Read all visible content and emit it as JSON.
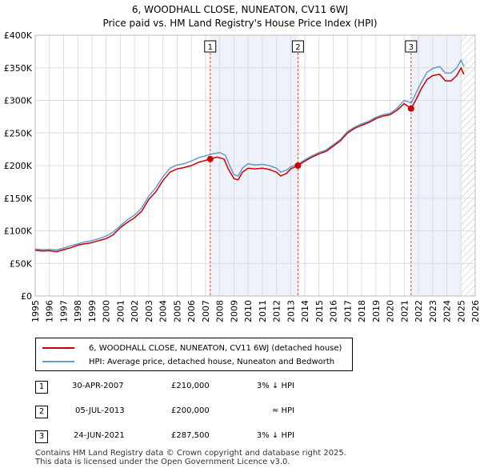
{
  "title_line1": "6, WOODHALL CLOSE, NUNEATON, CV11 6WJ",
  "title_line2": "Price paid vs. HM Land Registry's House Price Index (HPI)",
  "chart_data": {
    "type": "line",
    "title": "6, WOODHALL CLOSE, NUNEATON, CV11 6WJ",
    "subtitle": "Price paid vs. HM Land Registry's House Price Index (HPI)",
    "xlabel": "",
    "ylabel": "",
    "xlim": [
      1995,
      2026
    ],
    "ylim": [
      0,
      400000
    ],
    "x_ticks": [
      "1995",
      "1996",
      "1997",
      "1998",
      "1999",
      "2000",
      "2001",
      "2002",
      "2003",
      "2004",
      "2005",
      "2006",
      "2007",
      "2008",
      "2009",
      "2010",
      "2011",
      "2012",
      "2013",
      "2014",
      "2015",
      "2016",
      "2017",
      "2018",
      "2019",
      "2020",
      "2021",
      "2022",
      "2023",
      "2024",
      "2025",
      "2026"
    ],
    "y_ticks": [
      {
        "value": 0,
        "label": "£0"
      },
      {
        "value": 50000,
        "label": "£50K"
      },
      {
        "value": 100000,
        "label": "£100K"
      },
      {
        "value": 150000,
        "label": "£150K"
      },
      {
        "value": 200000,
        "label": "£200K"
      },
      {
        "value": 250000,
        "label": "£250K"
      },
      {
        "value": 300000,
        "label": "£300K"
      },
      {
        "value": 350000,
        "label": "£350K"
      },
      {
        "value": 400000,
        "label": "£400K"
      }
    ],
    "grid": true,
    "shaded_periods": [
      [
        2007.33,
        2013.51
      ],
      [
        2021.48,
        2025.0
      ]
    ],
    "hatched_future_from": 2025.0,
    "series": [
      {
        "name": "6, WOODHALL CLOSE, NUNEATON, CV11 6WJ (detached house)",
        "color": "#cc0000",
        "points": [
          [
            1995.0,
            70000
          ],
          [
            1995.5,
            69000
          ],
          [
            1996.0,
            69500
          ],
          [
            1996.5,
            68000
          ],
          [
            1997.0,
            71000
          ],
          [
            1997.5,
            74000
          ],
          [
            1998.0,
            78000
          ],
          [
            1998.5,
            80000
          ],
          [
            1999.0,
            82000
          ],
          [
            1999.5,
            85000
          ],
          [
            2000.0,
            88000
          ],
          [
            2000.5,
            94000
          ],
          [
            2001.0,
            105000
          ],
          [
            2001.5,
            113000
          ],
          [
            2002.0,
            120000
          ],
          [
            2002.5,
            130000
          ],
          [
            2003.0,
            148000
          ],
          [
            2003.5,
            160000
          ],
          [
            2004.0,
            177000
          ],
          [
            2004.5,
            190000
          ],
          [
            2005.0,
            195000
          ],
          [
            2005.5,
            197000
          ],
          [
            2006.0,
            200000
          ],
          [
            2006.5,
            205000
          ],
          [
            2007.0,
            208000
          ],
          [
            2007.33,
            210000
          ],
          [
            2007.8,
            213000
          ],
          [
            2008.3,
            210000
          ],
          [
            2008.6,
            195000
          ],
          [
            2009.0,
            180000
          ],
          [
            2009.3,
            178000
          ],
          [
            2009.6,
            190000
          ],
          [
            2010.0,
            196000
          ],
          [
            2010.5,
            195000
          ],
          [
            2011.0,
            196000
          ],
          [
            2011.5,
            194000
          ],
          [
            2012.0,
            190000
          ],
          [
            2012.3,
            184000
          ],
          [
            2012.7,
            188000
          ],
          [
            2013.0,
            195000
          ],
          [
            2013.51,
            200000
          ],
          [
            2014.0,
            207000
          ],
          [
            2014.5,
            213000
          ],
          [
            2015.0,
            218000
          ],
          [
            2015.5,
            222000
          ],
          [
            2016.0,
            230000
          ],
          [
            2016.5,
            238000
          ],
          [
            2017.0,
            250000
          ],
          [
            2017.5,
            257000
          ],
          [
            2018.0,
            262000
          ],
          [
            2018.5,
            266000
          ],
          [
            2019.0,
            272000
          ],
          [
            2019.5,
            276000
          ],
          [
            2020.0,
            278000
          ],
          [
            2020.5,
            285000
          ],
          [
            2021.0,
            295000
          ],
          [
            2021.48,
            287500
          ],
          [
            2021.8,
            300000
          ],
          [
            2022.2,
            318000
          ],
          [
            2022.6,
            332000
          ],
          [
            2023.0,
            338000
          ],
          [
            2023.5,
            340000
          ],
          [
            2023.9,
            330000
          ],
          [
            2024.3,
            330000
          ],
          [
            2024.7,
            338000
          ],
          [
            2025.0,
            350000
          ],
          [
            2025.2,
            340000
          ]
        ]
      },
      {
        "name": "HPI: Average price, detached house, Nuneaton and Bedworth",
        "color": "#6699cc",
        "points": [
          [
            1995.0,
            72000
          ],
          [
            1995.5,
            71000
          ],
          [
            1996.0,
            71500
          ],
          [
            1996.5,
            70500
          ],
          [
            1997.0,
            73500
          ],
          [
            1997.5,
            77000
          ],
          [
            1998.0,
            80000
          ],
          [
            1998.5,
            83000
          ],
          [
            1999.0,
            85000
          ],
          [
            1999.5,
            88000
          ],
          [
            2000.0,
            92000
          ],
          [
            2000.5,
            98000
          ],
          [
            2001.0,
            108000
          ],
          [
            2001.5,
            117000
          ],
          [
            2002.0,
            124000
          ],
          [
            2002.5,
            135000
          ],
          [
            2003.0,
            153000
          ],
          [
            2003.5,
            166000
          ],
          [
            2004.0,
            183000
          ],
          [
            2004.5,
            196000
          ],
          [
            2005.0,
            201000
          ],
          [
            2005.5,
            203000
          ],
          [
            2006.0,
            207000
          ],
          [
            2006.5,
            212000
          ],
          [
            2007.0,
            215000
          ],
          [
            2007.5,
            218000
          ],
          [
            2008.0,
            220000
          ],
          [
            2008.4,
            216000
          ],
          [
            2008.7,
            200000
          ],
          [
            2009.0,
            186000
          ],
          [
            2009.3,
            184000
          ],
          [
            2009.6,
            196000
          ],
          [
            2010.0,
            203000
          ],
          [
            2010.5,
            201000
          ],
          [
            2011.0,
            202000
          ],
          [
            2011.5,
            200000
          ],
          [
            2012.0,
            196000
          ],
          [
            2012.3,
            190000
          ],
          [
            2012.7,
            193000
          ],
          [
            2013.0,
            198000
          ],
          [
            2013.5,
            202000
          ],
          [
            2014.0,
            209000
          ],
          [
            2014.5,
            215000
          ],
          [
            2015.0,
            220000
          ],
          [
            2015.5,
            224000
          ],
          [
            2016.0,
            232000
          ],
          [
            2016.5,
            240000
          ],
          [
            2017.0,
            252000
          ],
          [
            2017.5,
            259000
          ],
          [
            2018.0,
            264000
          ],
          [
            2018.5,
            268000
          ],
          [
            2019.0,
            274000
          ],
          [
            2019.5,
            278000
          ],
          [
            2020.0,
            280000
          ],
          [
            2020.5,
            288000
          ],
          [
            2021.0,
            300000
          ],
          [
            2021.5,
            296000
          ],
          [
            2021.8,
            310000
          ],
          [
            2022.2,
            328000
          ],
          [
            2022.6,
            343000
          ],
          [
            2023.0,
            349000
          ],
          [
            2023.5,
            352000
          ],
          [
            2023.9,
            342000
          ],
          [
            2024.3,
            342000
          ],
          [
            2024.7,
            350000
          ],
          [
            2025.0,
            362000
          ],
          [
            2025.2,
            352000
          ]
        ]
      }
    ],
    "markers": [
      {
        "label": "1",
        "x": 2007.33,
        "y": 210000
      },
      {
        "label": "2",
        "x": 2013.51,
        "y": 200000
      },
      {
        "label": "3",
        "x": 2021.48,
        "y": 287500
      }
    ]
  },
  "legend": [
    {
      "label": "6, WOODHALL CLOSE, NUNEATON, CV11 6WJ (detached house)",
      "color": "#cc0000"
    },
    {
      "label": "HPI: Average price, detached house, Nuneaton and Bedworth",
      "color": "#6699cc"
    }
  ],
  "transactions": [
    {
      "num": "1",
      "date": "30-APR-2007",
      "price": "£210,000",
      "relation": "3% ↓ HPI"
    },
    {
      "num": "2",
      "date": "05-JUL-2013",
      "price": "£200,000",
      "relation": "≈ HPI"
    },
    {
      "num": "3",
      "date": "24-JUN-2021",
      "price": "£287,500",
      "relation": "3% ↓ HPI"
    }
  ],
  "footer_line1": "Contains HM Land Registry data © Crown copyright and database right 2025.",
  "footer_line2": "This data is licensed under the Open Government Licence v3.0."
}
